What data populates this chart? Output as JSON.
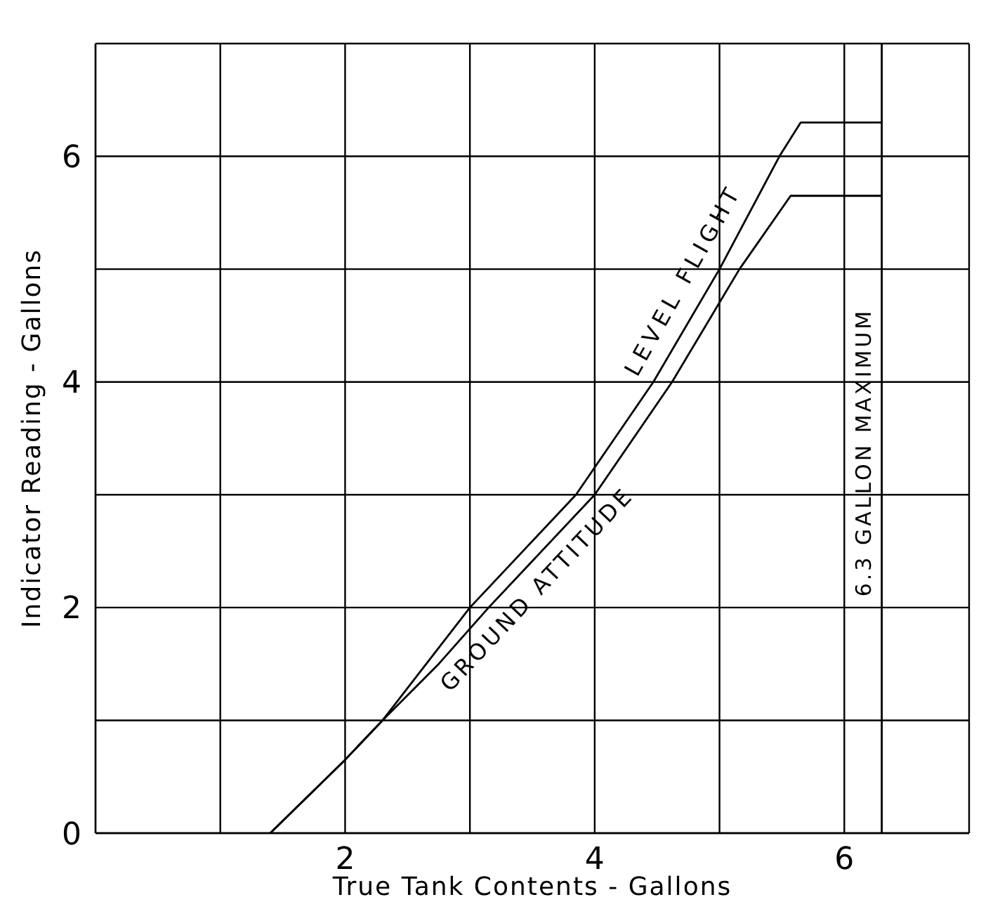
{
  "chart_data": {
    "type": "line",
    "xlabel": "True Tank Contents - Gallons",
    "ylabel": "Indicator Reading - Gallons",
    "xlim": [
      0,
      7
    ],
    "ylim": [
      0,
      7
    ],
    "xticks": [
      {
        "value": 0,
        "label": null
      },
      {
        "value": 1,
        "label": null
      },
      2,
      {
        "value": 3,
        "label": null
      },
      4,
      {
        "value": 5,
        "label": null
      },
      6,
      {
        "value": 7,
        "label": null
      }
    ],
    "yticks": [
      0,
      {
        "value": 1,
        "label": null
      },
      2,
      {
        "value": 3,
        "label": null
      },
      4,
      {
        "value": 5,
        "label": null
      },
      6,
      {
        "value": 7,
        "label": null
      }
    ],
    "grid": true,
    "marker": "none",
    "line_style": "solid",
    "legend": false,
    "series": [
      {
        "name": "LEVEL FLIGHT",
        "color": "#000000",
        "x": [
          1.4,
          2.0,
          2.3,
          2.65,
          3.0,
          3.85,
          4.47,
          5.0,
          5.48,
          5.65,
          6.3
        ],
        "values": [
          0,
          0.65,
          1.0,
          1.5,
          2.0,
          3.0,
          4.0,
          5.0,
          6.0,
          6.3,
          6.3
        ]
      },
      {
        "name": "GROUND ATTITUDE",
        "color": "#000000",
        "x": [
          1.4,
          2.0,
          2.3,
          2.75,
          3.15,
          4.0,
          4.62,
          5.16,
          5.57,
          6.3
        ],
        "values": [
          0,
          0.65,
          1.0,
          1.5,
          2.0,
          3.0,
          4.0,
          5.0,
          5.65,
          5.65
        ]
      }
    ],
    "ref_lines": [
      {
        "axis": "x",
        "value": 6.3,
        "label": "6.3 GALLON MAXIMUM",
        "color": "#000000"
      }
    ]
  }
}
